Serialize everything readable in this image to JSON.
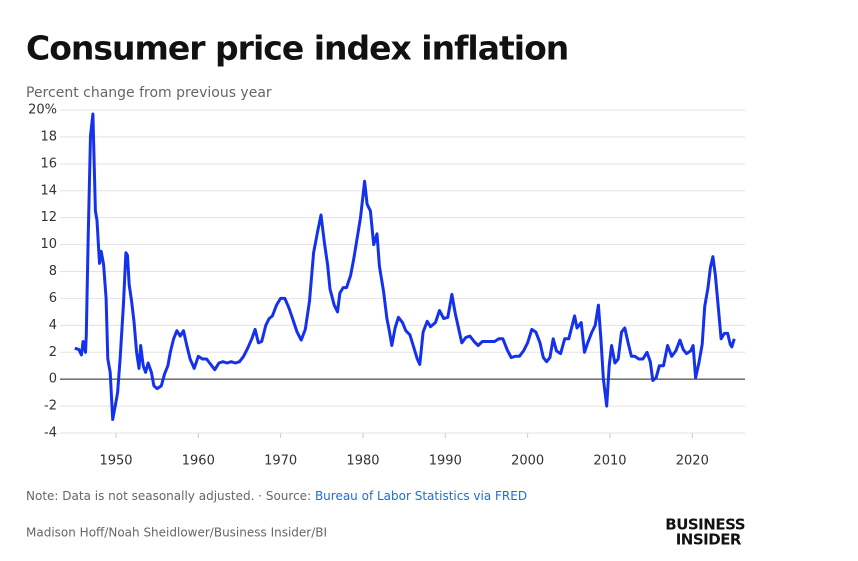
{
  "chart_data": {
    "type": "line",
    "title": "Consumer price index inflation",
    "subtitle": "Percent change from previous year",
    "note": "Note: Data is not seasonally adjusted. · Source:",
    "source_link": "Bureau of Labor Statistics via FRED",
    "credit": "Madison Hoff/Noah Sheidlower/Business Insider/BI",
    "logo": [
      "BUSINESS",
      "INSIDER"
    ],
    "color": "#1432ee",
    "grid": true,
    "xlim": [
      1943.2,
      2026.4
    ],
    "xticks": [
      1950,
      1960,
      1970,
      1980,
      1990,
      2000,
      2010,
      2020
    ],
    "ylim": [
      -4,
      20
    ],
    "yticks": [
      -4,
      -2,
      0,
      2,
      4,
      6,
      8,
      10,
      12,
      14,
      16,
      18,
      {
        "value": 20,
        "label": "20%"
      }
    ],
    "x": [
      1945.0,
      1945.5,
      1945.8,
      1946.0,
      1946.3,
      1946.4,
      1946.6,
      1946.9,
      1947.2,
      1947.5,
      1947.7,
      1948.0,
      1948.2,
      1948.5,
      1948.8,
      1949.0,
      1949.3,
      1949.6,
      1949.9,
      1950.2,
      1950.5,
      1950.9,
      1951.2,
      1951.4,
      1951.6,
      1951.9,
      1952.2,
      1952.5,
      1952.8,
      1953.0,
      1953.3,
      1953.6,
      1953.9,
      1954.3,
      1954.6,
      1955.0,
      1955.5,
      1955.9,
      1956.3,
      1956.6,
      1957.0,
      1957.4,
      1957.8,
      1958.2,
      1958.6,
      1959.0,
      1959.5,
      1960.0,
      1960.5,
      1961.0,
      1961.5,
      1962.0,
      1962.5,
      1963.0,
      1963.5,
      1964.0,
      1964.5,
      1965.0,
      1965.5,
      1966.0,
      1966.5,
      1966.9,
      1967.3,
      1967.7,
      1968.2,
      1968.6,
      1969.0,
      1969.5,
      1970.0,
      1970.5,
      1971.0,
      1971.5,
      1972.0,
      1972.5,
      1973.0,
      1973.5,
      1974.0,
      1974.5,
      1974.9,
      1975.3,
      1975.7,
      1976.0,
      1976.5,
      1976.9,
      1977.2,
      1977.6,
      1978.0,
      1978.5,
      1978.9,
      1979.3,
      1979.7,
      1980.2,
      1980.5,
      1980.9,
      1981.3,
      1981.7,
      1982.0,
      1982.5,
      1982.9,
      1983.2,
      1983.5,
      1983.9,
      1984.3,
      1984.8,
      1985.2,
      1985.7,
      1986.2,
      1986.6,
      1986.9,
      1987.3,
      1987.8,
      1988.2,
      1988.8,
      1989.3,
      1989.8,
      1990.3,
      1990.8,
      1991.2,
      1991.6,
      1992.0,
      1992.5,
      1993.0,
      1993.5,
      1994.0,
      1994.5,
      1995.0,
      1995.5,
      1996.0,
      1996.5,
      1997.0,
      1997.5,
      1998.0,
      1998.5,
      1999.0,
      1999.5,
      2000.0,
      2000.5,
      2001.0,
      2001.5,
      2001.9,
      2002.3,
      2002.7,
      2003.1,
      2003.5,
      2004.0,
      2004.5,
      2005.0,
      2005.7,
      2006.0,
      2006.5,
      2006.9,
      2007.3,
      2007.8,
      2008.2,
      2008.6,
      2008.9,
      2009.2,
      2009.6,
      2009.9,
      2010.2,
      2010.6,
      2011.0,
      2011.4,
      2011.8,
      2012.2,
      2012.6,
      2013.0,
      2013.5,
      2014.0,
      2014.5,
      2014.9,
      2015.2,
      2015.6,
      2016.0,
      2016.5,
      2017.0,
      2017.5,
      2018.0,
      2018.5,
      2018.9,
      2019.3,
      2019.8,
      2020.1,
      2020.4,
      2020.8,
      2021.2,
      2021.5,
      2021.9,
      2022.2,
      2022.5,
      2022.8,
      2023.2,
      2023.5,
      2023.9,
      2024.3,
      2024.6,
      2024.8,
      2025.1
    ],
    "values": [
      2.3,
      2.2,
      1.8,
      2.8,
      2.0,
      3.3,
      9.9,
      18.1,
      19.7,
      12.5,
      11.8,
      8.6,
      9.5,
      8.5,
      6.0,
      1.5,
      0.5,
      -3.0,
      -2.0,
      -1.0,
      1.5,
      5.5,
      9.4,
      9.2,
      7.0,
      5.8,
      4.2,
      2.0,
      0.8,
      2.5,
      1.0,
      0.5,
      1.2,
      0.5,
      -0.5,
      -0.7,
      -0.5,
      0.4,
      1.0,
      2.0,
      3.0,
      3.6,
      3.2,
      3.6,
      2.5,
      1.5,
      0.8,
      1.7,
      1.5,
      1.5,
      1.1,
      0.7,
      1.2,
      1.3,
      1.2,
      1.3,
      1.2,
      1.3,
      1.7,
      2.3,
      3.0,
      3.7,
      2.7,
      2.8,
      4.0,
      4.5,
      4.7,
      5.5,
      6.0,
      6.0,
      5.3,
      4.4,
      3.5,
      2.9,
      3.7,
      5.8,
      9.4,
      11.0,
      12.2,
      10.2,
      8.5,
      6.7,
      5.5,
      5.0,
      6.4,
      6.8,
      6.8,
      7.7,
      9.0,
      10.5,
      12.0,
      14.7,
      13.0,
      12.5,
      10.0,
      10.8,
      8.4,
      6.5,
      4.5,
      3.6,
      2.5,
      3.8,
      4.6,
      4.2,
      3.6,
      3.3,
      2.3,
      1.5,
      1.1,
      3.5,
      4.3,
      3.9,
      4.2,
      5.1,
      4.5,
      4.6,
      6.3,
      4.9,
      3.8,
      2.7,
      3.1,
      3.2,
      2.8,
      2.5,
      2.8,
      2.8,
      2.8,
      2.8,
      3.0,
      3.0,
      2.2,
      1.6,
      1.7,
      1.7,
      2.1,
      2.7,
      3.7,
      3.5,
      2.7,
      1.6,
      1.3,
      1.6,
      3.0,
      2.1,
      1.9,
      3.0,
      3.0,
      4.7,
      3.8,
      4.2,
      2.0,
      2.7,
      3.5,
      4.0,
      5.5,
      3.0,
      0.0,
      -2.0,
      1.0,
      2.5,
      1.2,
      1.5,
      3.5,
      3.8,
      2.7,
      1.7,
      1.7,
      1.5,
      1.5,
      2.0,
      1.3,
      -0.1,
      0.1,
      1.0,
      1.0,
      2.5,
      1.7,
      2.1,
      2.9,
      2.2,
      1.9,
      2.1,
      2.5,
      0.1,
      1.2,
      2.6,
      5.4,
      6.8,
      8.3,
      9.1,
      7.7,
      5.0,
      3.0,
      3.4,
      3.4,
      2.6,
      2.4,
      3.0
    ]
  }
}
